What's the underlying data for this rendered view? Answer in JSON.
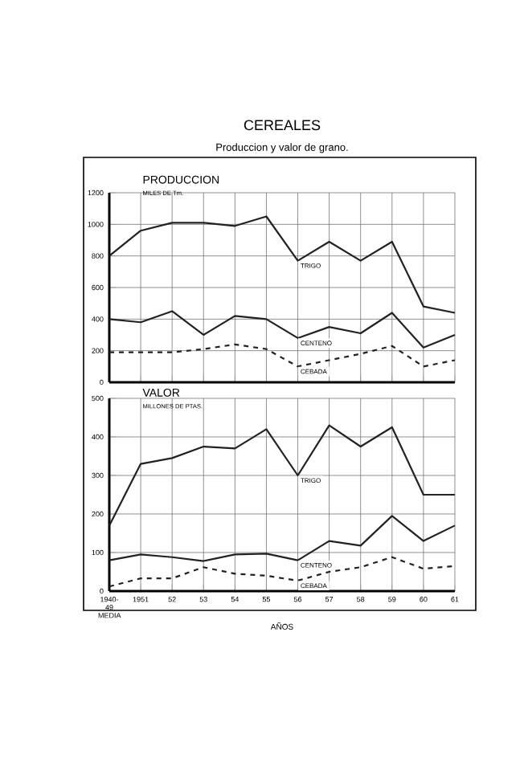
{
  "chart_data": [
    {
      "type": "line",
      "title": "CEREALES",
      "subtitle": "Produccion y valor de grano.",
      "annotations": [
        "PRODUCCION",
        "MILES DE Tm."
      ],
      "categories": [
        null,
        null,
        null,
        null,
        null,
        null,
        null,
        null,
        null,
        null,
        null,
        null
      ],
      "series": [
        {
          "name": "TRIGO",
          "color": "#222222",
          "line_style": "solid",
          "values": [
            800,
            960,
            1010,
            1010,
            990,
            1050,
            770,
            890,
            770,
            890,
            480,
            440
          ]
        },
        {
          "name": "CENTENO",
          "color": "#222222",
          "line_style": "solid",
          "values": [
            400,
            380,
            450,
            300,
            420,
            400,
            280,
            350,
            310,
            440,
            220,
            300
          ]
        },
        {
          "name": "CEBADA",
          "color": "#222222",
          "line_style": "dashed",
          "values": [
            190,
            190,
            190,
            210,
            240,
            210,
            100,
            140,
            180,
            230,
            100,
            140
          ]
        }
      ],
      "ylim": [
        0,
        1200
      ],
      "yticks": [
        0,
        200,
        400,
        600,
        800,
        1000,
        1200
      ],
      "grid": true,
      "legend": false,
      "tick_labels": "y"
    },
    {
      "type": "line",
      "title": "VALOR",
      "subtitle": "MILLONES DE PTAS.",
      "xlabel": "AÑOS",
      "categories": [
        "1940-49 MEDIA",
        "1951",
        "52",
        "53",
        "54",
        "55",
        "56",
        "57",
        "58",
        "59",
        "60",
        "61"
      ],
      "series": [
        {
          "name": "TRIGO",
          "color": "#222222",
          "line_style": "solid",
          "values": [
            170,
            330,
            345,
            375,
            370,
            420,
            300,
            430,
            375,
            425,
            250,
            250
          ]
        },
        {
          "name": "CENTENO",
          "color": "#222222",
          "line_style": "solid",
          "values": [
            80,
            95,
            88,
            78,
            95,
            97,
            80,
            130,
            118,
            195,
            130,
            170
          ]
        },
        {
          "name": "CEBADA",
          "color": "#222222",
          "line_style": "dashed",
          "values": [
            12,
            33,
            33,
            62,
            45,
            40,
            27,
            50,
            62,
            88,
            58,
            65
          ]
        }
      ],
      "ylim": [
        0,
        500
      ],
      "yticks": [
        0,
        100,
        200,
        300,
        400,
        500
      ],
      "grid": true,
      "legend": false
    }
  ]
}
